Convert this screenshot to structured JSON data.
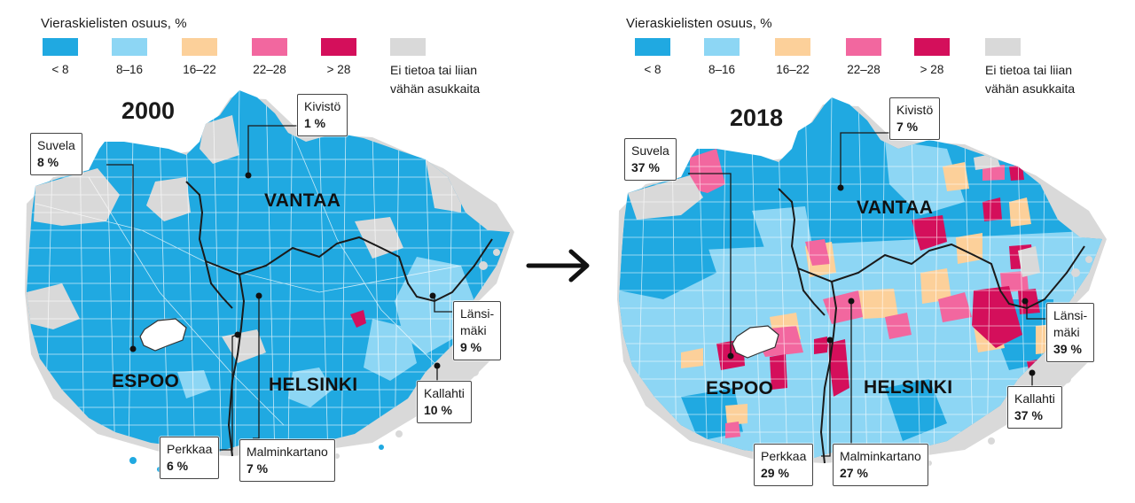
{
  "legend": {
    "title": "Vieraskielisten osuus, %",
    "classes": [
      {
        "label": "< 8",
        "color": "#20a9e1"
      },
      {
        "label": "8–16",
        "color": "#8dd6f4"
      },
      {
        "label": "16–22",
        "color": "#fcd09a"
      },
      {
        "label": "22–28",
        "color": "#f2679f"
      },
      {
        "label": "> 28",
        "color": "#d40f5b"
      }
    ],
    "no_data": {
      "label_line1": "Ei tietoa tai liian",
      "label_line2": "vähän asukkaita",
      "color": "#d9d9d9"
    }
  },
  "cities": {
    "vantaa": "VANTAA",
    "espoo": "ESPOO",
    "helsinki": "HELSINKI"
  },
  "maps": [
    {
      "year": "2000",
      "callouts": [
        {
          "name": "Kivistö",
          "value": "1 %"
        },
        {
          "name": "Suvela",
          "value": "8 %"
        },
        {
          "name_line1": "Länsi-",
          "name_line2": "mäki",
          "value": "9 %"
        },
        {
          "name": "Kallahti",
          "value": "10 %"
        },
        {
          "name": "Perkkaa",
          "value": "6 %"
        },
        {
          "name": "Malminkartano",
          "value": "7 %"
        }
      ]
    },
    {
      "year": "2018",
      "callouts": [
        {
          "name": "Kivistö",
          "value": "7 %"
        },
        {
          "name": "Suvela",
          "value": "37 %"
        },
        {
          "name_line1": "Länsi-",
          "name_line2": "mäki",
          "value": "39 %"
        },
        {
          "name": "Kallahti",
          "value": "37 %"
        },
        {
          "name": "Perkkaa",
          "value": "29 %"
        },
        {
          "name": "Malminkartano",
          "value": "27 %"
        }
      ]
    }
  ],
  "arrow_icon": "right-arrow-icon"
}
